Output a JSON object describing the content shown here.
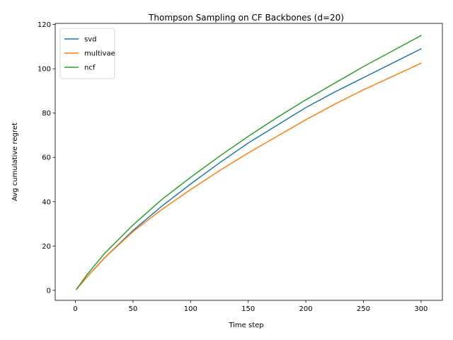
{
  "chart_data": {
    "type": "line",
    "title": "Thompson Sampling on CF Backbones (d=20)",
    "xlabel": "Time step",
    "ylabel": "Avg cumulative regret",
    "xlim": [
      -17.5,
      318.5
    ],
    "ylim": [
      -4.5,
      120.5
    ],
    "xticks": [
      0,
      50,
      100,
      150,
      200,
      250,
      300
    ],
    "yticks": [
      0,
      20,
      40,
      60,
      80,
      100,
      120
    ],
    "grid": false,
    "legend": "upper left",
    "x": [
      1,
      10,
      25,
      50,
      75,
      100,
      125,
      150,
      175,
      200,
      225,
      250,
      275,
      300
    ],
    "series": [
      {
        "name": "svd",
        "color": "#1f77b4",
        "values": [
          0.5,
          6.0,
          14.5,
          27.0,
          38.0,
          48.0,
          57.5,
          66.5,
          74.5,
          82.5,
          89.5,
          96.0,
          102.5,
          109.0
        ]
      },
      {
        "name": "multivae",
        "color": "#ff7f0e",
        "values": [
          0.5,
          6.0,
          14.5,
          26.5,
          36.5,
          45.5,
          54.0,
          62.0,
          69.5,
          77.0,
          84.0,
          90.5,
          96.5,
          102.5
        ]
      },
      {
        "name": "ncf",
        "color": "#2ca02c",
        "values": [
          0.5,
          7.0,
          16.5,
          29.5,
          41.0,
          51.0,
          60.5,
          69.5,
          78.0,
          86.0,
          93.5,
          101.0,
          108.0,
          115.0
        ]
      }
    ]
  }
}
